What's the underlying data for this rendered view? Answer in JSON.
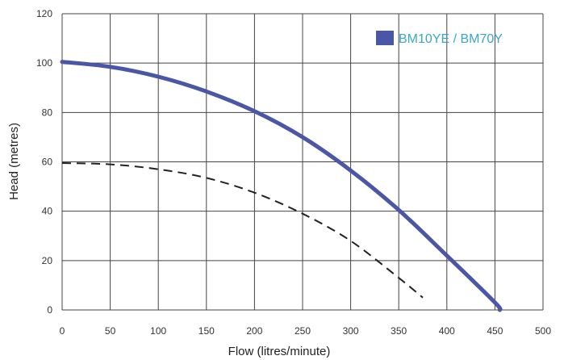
{
  "chart_data": {
    "type": "line",
    "title": "",
    "xlabel": "Flow (litres/minute)",
    "ylabel": "Head (metres)",
    "xlim": [
      0,
      500
    ],
    "ylim": [
      0,
      120
    ],
    "xticks": [
      "0",
      "50",
      "100",
      "150",
      "200",
      "250",
      "300",
      "350",
      "400",
      "450",
      "500"
    ],
    "yticks": [
      "0",
      "20",
      "40",
      "60",
      "80",
      "100",
      "120"
    ],
    "grid": true,
    "legend_position": "top-right",
    "series": [
      {
        "name": "BM10YE / BM70Y",
        "style": "solid",
        "color": "#4a56a6",
        "x": [
          0,
          50,
          100,
          150,
          200,
          250,
          300,
          350,
          400,
          450,
          455
        ],
        "y": [
          100.5,
          98.5,
          94.5,
          88.5,
          80.5,
          70,
          56.5,
          40.5,
          22,
          3,
          0
        ]
      },
      {
        "name": "",
        "style": "dashed",
        "color": "#222222",
        "x": [
          0,
          50,
          100,
          150,
          200,
          250,
          300,
          350,
          375
        ],
        "y": [
          59.5,
          59,
          57,
          53.5,
          47.5,
          39,
          28,
          13,
          5
        ]
      }
    ]
  },
  "colors": {
    "grid": "#444444",
    "legend_text": "#3aa6c9"
  }
}
